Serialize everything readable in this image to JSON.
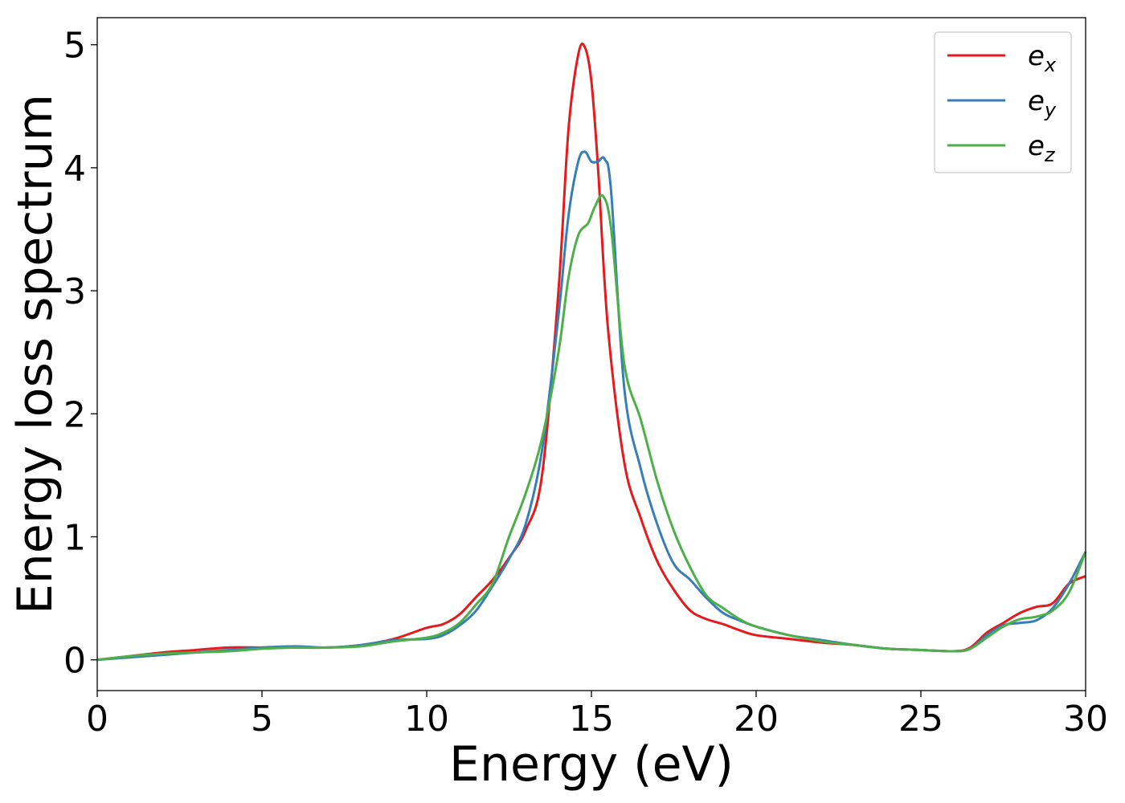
{
  "chart_data": {
    "type": "line",
    "title": "",
    "xlabel": "Energy (eV)",
    "ylabel": "Energy loss spectrum",
    "xlim": [
      0,
      30
    ],
    "ylim": [
      -0.25,
      5.22
    ],
    "xticks": [
      0,
      5,
      10,
      15,
      20,
      25,
      30
    ],
    "yticks": [
      0,
      1,
      2,
      3,
      4,
      5
    ],
    "grid": false,
    "legend_position": "top-right",
    "series": [
      {
        "name": "e",
        "subscript": "x",
        "color": "#e41a1c",
        "x": [
          0,
          1,
          2,
          3,
          4,
          5,
          6,
          7,
          8,
          9,
          10,
          10.5,
          11,
          11.5,
          12,
          12.5,
          13,
          13.5,
          14,
          14.3,
          14.6,
          14.8,
          15,
          15.2,
          15.5,
          16,
          16.5,
          17,
          17.5,
          18,
          18.5,
          19,
          19.5,
          20,
          21,
          22,
          23,
          24,
          25,
          26,
          26.5,
          27,
          27.5,
          28,
          28.5,
          29,
          29.5,
          30
        ],
        "y": [
          0,
          0.03,
          0.06,
          0.08,
          0.1,
          0.1,
          0.1,
          0.1,
          0.12,
          0.17,
          0.26,
          0.29,
          0.37,
          0.51,
          0.65,
          0.83,
          1.05,
          1.5,
          3.0,
          4.3,
          4.92,
          4.98,
          4.7,
          4.0,
          2.7,
          1.6,
          1.15,
          0.8,
          0.57,
          0.4,
          0.33,
          0.29,
          0.24,
          0.2,
          0.17,
          0.14,
          0.12,
          0.09,
          0.08,
          0.07,
          0.1,
          0.22,
          0.3,
          0.38,
          0.43,
          0.46,
          0.62,
          0.68
        ]
      },
      {
        "name": "e",
        "subscript": "y",
        "color": "#377eb8",
        "x": [
          0,
          1,
          2,
          3,
          4,
          5,
          6,
          7,
          8,
          9,
          10,
          10.5,
          11,
          11.5,
          12,
          12.5,
          13,
          13.5,
          14,
          14.3,
          14.6,
          14.8,
          15,
          15.2,
          15.4,
          15.6,
          16,
          16.5,
          17,
          17.5,
          18,
          18.5,
          19,
          19.5,
          20,
          21,
          22,
          23,
          24,
          25,
          26,
          26.5,
          27,
          27.5,
          28,
          28.5,
          29,
          29.5,
          30
        ],
        "y": [
          0,
          0.02,
          0.04,
          0.06,
          0.08,
          0.1,
          0.11,
          0.1,
          0.12,
          0.16,
          0.17,
          0.2,
          0.28,
          0.4,
          0.6,
          0.82,
          1.1,
          1.7,
          2.8,
          3.6,
          4.05,
          4.13,
          4.05,
          4.05,
          4.07,
          3.8,
          2.2,
          1.55,
          1.1,
          0.78,
          0.65,
          0.5,
          0.38,
          0.32,
          0.27,
          0.2,
          0.16,
          0.12,
          0.09,
          0.08,
          0.07,
          0.09,
          0.2,
          0.28,
          0.3,
          0.32,
          0.42,
          0.62,
          0.88
        ]
      },
      {
        "name": "e",
        "subscript": "z",
        "color": "#4daf4a",
        "x": [
          0,
          1,
          2,
          3,
          4,
          5,
          6,
          7,
          8,
          9,
          10,
          10.5,
          11,
          11.5,
          12,
          12.5,
          13,
          13.5,
          14,
          14.3,
          14.6,
          14.9,
          15.1,
          15.35,
          15.6,
          16,
          16.5,
          17,
          17.5,
          18,
          18.5,
          19,
          19.5,
          20,
          21,
          22,
          23,
          24,
          25,
          26,
          26.5,
          27,
          27.5,
          28,
          28.5,
          29,
          29.5,
          30
        ],
        "y": [
          0,
          0.03,
          0.05,
          0.06,
          0.07,
          0.09,
          0.1,
          0.1,
          0.11,
          0.15,
          0.18,
          0.22,
          0.3,
          0.45,
          0.62,
          1.0,
          1.35,
          1.8,
          2.5,
          3.1,
          3.45,
          3.55,
          3.68,
          3.77,
          3.5,
          2.4,
          1.95,
          1.45,
          1.05,
          0.75,
          0.52,
          0.42,
          0.33,
          0.27,
          0.2,
          0.15,
          0.12,
          0.09,
          0.08,
          0.07,
          0.09,
          0.18,
          0.27,
          0.33,
          0.35,
          0.4,
          0.55,
          0.88
        ]
      }
    ]
  }
}
